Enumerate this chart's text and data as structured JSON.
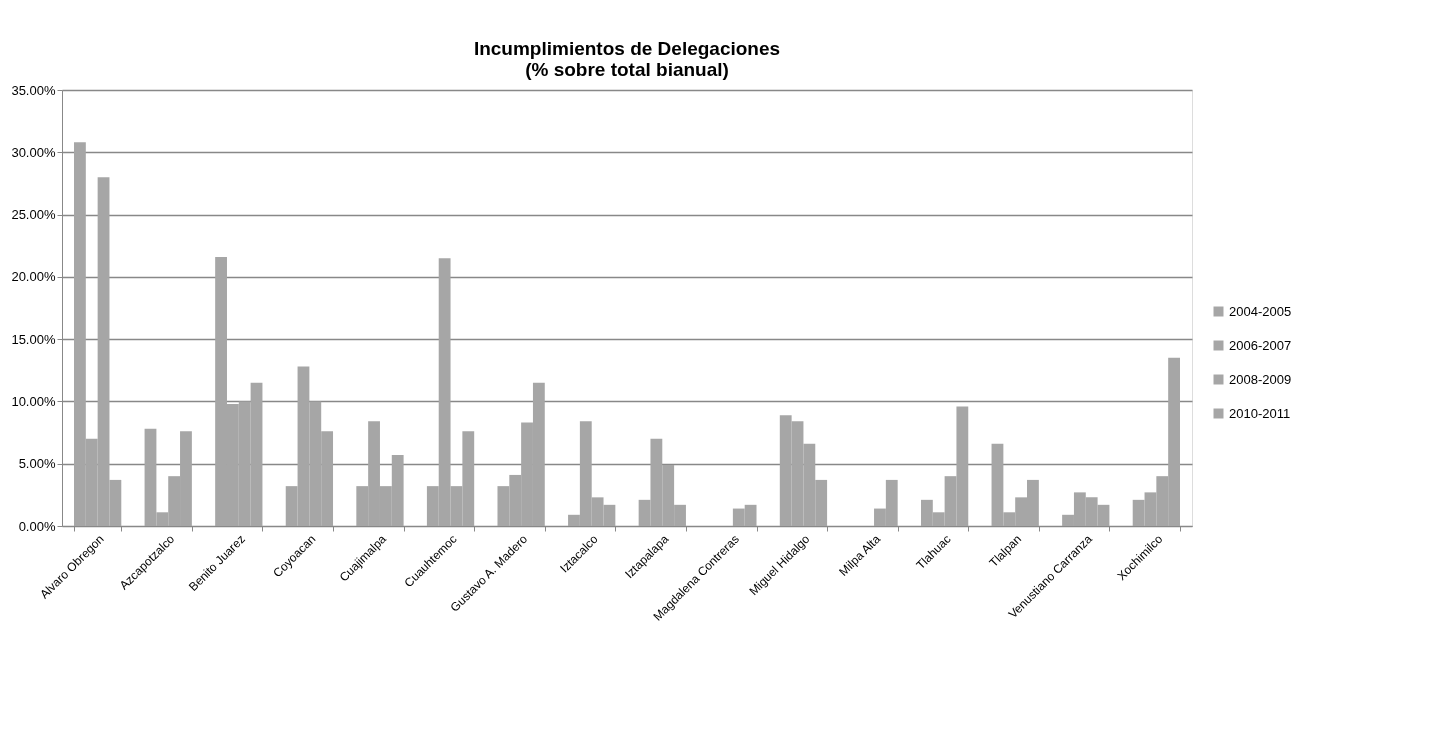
{
  "chart_data": {
    "type": "bar",
    "title": "Incumplimientos de Delegaciones\n(% sobre total bianual)",
    "categories": [
      "Alvaro Obregon",
      "Azcapotzalco",
      "Benito Juarez",
      "Coyoacan",
      "Cuajimalpa",
      "Cuauhtemoc",
      "Gustavo A. Madero",
      "Iztacalco",
      "Iztapalapa",
      "Magdalena Contreras",
      "Miguel Hidalgo",
      "Milpa Alta",
      "Tlahuac",
      "Tlalpan",
      "Venustiano Carranza",
      "Xochimilco"
    ],
    "series": [
      {
        "name": "2004-2005",
        "color": "#a6a6a6",
        "values": [
          30.8,
          7.8,
          21.6,
          3.2,
          3.2,
          3.2,
          3.2,
          0.9,
          2.1,
          0,
          8.9,
          0,
          2.1,
          6.6,
          0.9,
          2.1
        ]
      },
      {
        "name": "2006-2007",
        "color": "#a6a6a6",
        "values": [
          7.0,
          1.1,
          9.8,
          12.8,
          8.4,
          21.5,
          4.1,
          8.4,
          7.0,
          0,
          8.4,
          0,
          1.1,
          1.1,
          2.7,
          2.7
        ]
      },
      {
        "name": "2008-2009",
        "color": "#a6a6a6",
        "values": [
          28.0,
          4.0,
          10.0,
          10.0,
          3.2,
          3.2,
          8.3,
          2.3,
          4.9,
          1.4,
          6.6,
          1.4,
          4.0,
          2.3,
          2.3,
          4.0
        ]
      },
      {
        "name": "2010-2011",
        "color": "#a6a6a6",
        "values": [
          3.7,
          7.6,
          11.5,
          7.6,
          5.7,
          7.6,
          11.5,
          1.7,
          1.7,
          1.7,
          3.7,
          3.7,
          9.6,
          3.7,
          1.7,
          13.5
        ]
      }
    ],
    "ylim": [
      0,
      35
    ],
    "yticks": [
      {
        "value": 0,
        "label": "0.00%"
      },
      {
        "value": 5,
        "label": "5.00%"
      },
      {
        "value": 10,
        "label": "10.00%"
      },
      {
        "value": 15,
        "label": "15.00%"
      },
      {
        "value": 20,
        "label": "20.00%"
      },
      {
        "value": 25,
        "label": "25.00%"
      },
      {
        "value": 30,
        "label": "30.00%"
      },
      {
        "value": 35,
        "label": "35.00%"
      }
    ],
    "grid": "y",
    "legend": "right"
  }
}
